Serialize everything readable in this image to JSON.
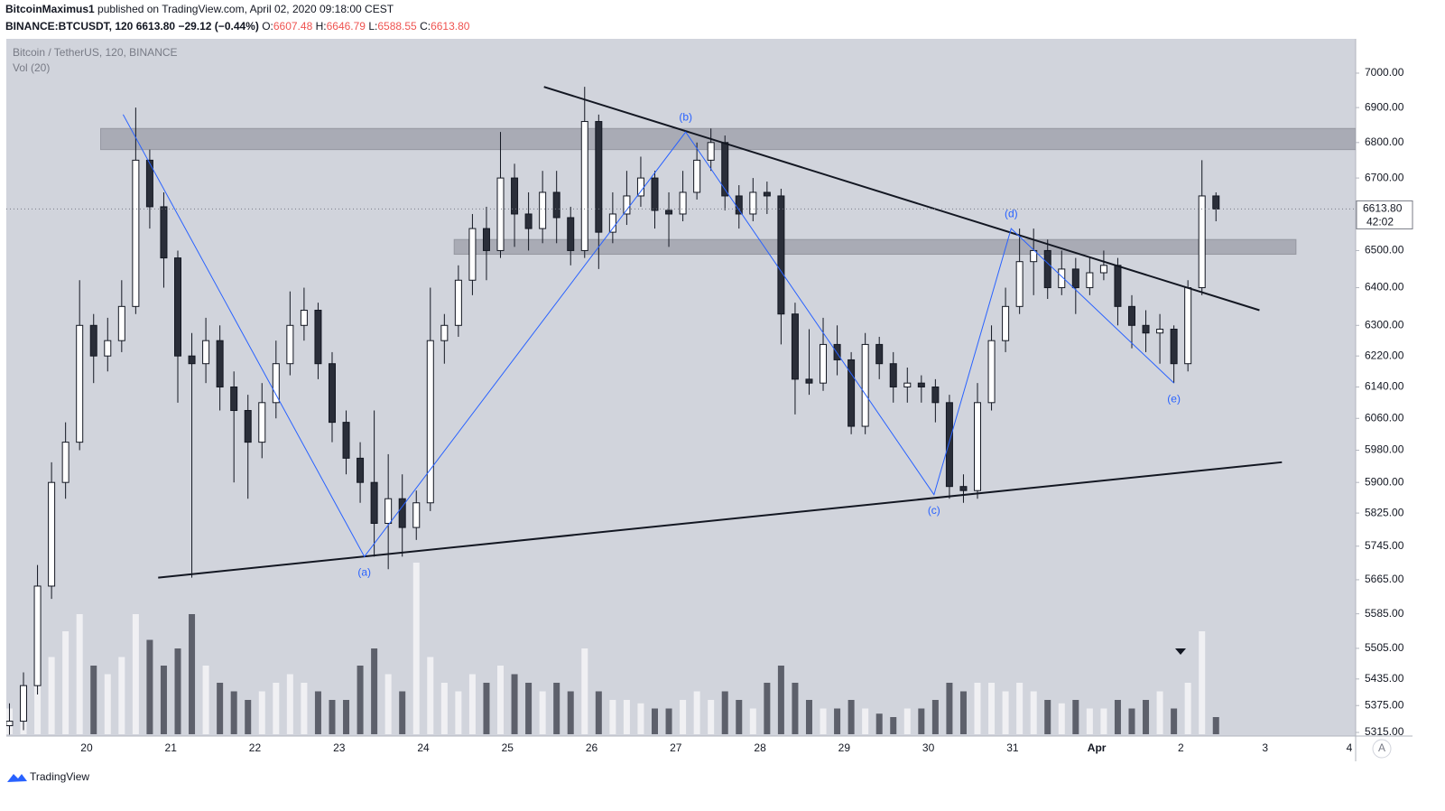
{
  "header": {
    "author": "BitcoinMaximus1",
    "published": "published on TradingView.com, April 02, 2020 09:18:00 CEST",
    "symbol": "BINANCE:BTCUSDT, 120",
    "price": "6613.80",
    "change": "−29.12 (−0.44%)",
    "ohlc": [
      {
        "key": "O:",
        "value": "6607.48"
      },
      {
        "key": "H:",
        "value": "6646.79"
      },
      {
        "key": "L:",
        "value": "6588.55"
      },
      {
        "key": "C:",
        "value": "6613.80"
      }
    ]
  },
  "footer": {
    "brand": "TradingView",
    "scale_button": "A"
  },
  "chart_data": {
    "type": "candlestick",
    "title": "Bitcoin / TetherUS, 120, BINANCE",
    "volume_label": "Vol (20)",
    "log_scale": true,
    "ylim": [
      5307,
      7101
    ],
    "yticks": [
      {
        "value": 7000,
        "label": "7000.00"
      },
      {
        "value": 6900,
        "label": "6900.00"
      },
      {
        "value": 6800,
        "label": "6800.00"
      },
      {
        "value": 6700,
        "label": "6700.00"
      },
      {
        "value": 6500,
        "label": "6500.00"
      },
      {
        "value": 6400,
        "label": "6400.00"
      },
      {
        "value": 6300,
        "label": "6300.00"
      },
      {
        "value": 6220,
        "label": "6220.00"
      },
      {
        "value": 6140,
        "label": "6140.00"
      },
      {
        "value": 6060,
        "label": "6060.00"
      },
      {
        "value": 5980,
        "label": "5980.00"
      },
      {
        "value": 5900,
        "label": "5900.00"
      },
      {
        "value": 5825,
        "label": "5825.00"
      },
      {
        "value": 5745,
        "label": "5745.00"
      },
      {
        "value": 5665,
        "label": "5665.00"
      },
      {
        "value": 5585,
        "label": "5585.00"
      },
      {
        "value": 5505,
        "label": "5505.00"
      },
      {
        "value": 5435,
        "label": "5435.00"
      },
      {
        "value": 5375,
        "label": "5375.00"
      },
      {
        "value": 5315,
        "label": "5315.00"
      }
    ],
    "categories": [
      null,
      null,
      null,
      null,
      null,
      null,
      "20",
      null,
      null,
      null,
      null,
      null,
      "21",
      null,
      null,
      null,
      null,
      null,
      "22",
      null,
      null,
      null,
      null,
      null,
      "23",
      null,
      null,
      null,
      null,
      null,
      "24",
      null,
      null,
      null,
      null,
      null,
      "25",
      null,
      null,
      null,
      null,
      null,
      "26",
      null,
      null,
      null,
      null,
      null,
      "27",
      null,
      null,
      null,
      null,
      null,
      "28",
      null,
      null,
      null,
      null,
      null,
      "29",
      null,
      null,
      null,
      null,
      null,
      "30",
      null,
      null,
      null,
      null,
      null,
      "31",
      null,
      null,
      null,
      null,
      null,
      "Apr",
      null,
      null,
      null,
      null,
      null,
      "2",
      null,
      null,
      null,
      null,
      null,
      "3",
      null,
      null,
      null,
      null,
      null,
      "4"
    ],
    "open": [
      5330,
      5340,
      5420,
      5650,
      5900,
      6000,
      6300,
      6220,
      6260,
      6350,
      6750,
      6620,
      6480,
      6220,
      6200,
      6260,
      6140,
      6080,
      6000,
      6100,
      6200,
      6300,
      6340,
      6200,
      6050,
      5960,
      5900,
      5800,
      5860,
      5790,
      5850,
      6260,
      6300,
      6420,
      6560,
      6500,
      6700,
      6600,
      6560,
      6660,
      6590,
      6500,
      6860,
      6550,
      6600,
      6650,
      6700,
      6610,
      6600,
      6660,
      6750,
      6800,
      6650,
      6600,
      6660,
      6650,
      6330,
      6160,
      6150,
      6250,
      6210,
      6040,
      6250,
      6200,
      6140,
      6150,
      6140,
      6100,
      5890,
      5880,
      6100,
      6260,
      6350,
      6470,
      6500,
      6400,
      6450,
      6400,
      6440,
      6460,
      6350,
      6300,
      6280,
      6290,
      6200,
      6400,
      6650,
      null,
      null,
      null,
      null,
      null,
      null,
      null,
      null,
      null,
      null
    ],
    "high": [
      5380,
      5450,
      5700,
      5950,
      6050,
      6420,
      6330,
      6320,
      6420,
      6900,
      6780,
      6660,
      6500,
      6280,
      6320,
      6300,
      6180,
      6120,
      6150,
      6260,
      6390,
      6400,
      6360,
      6230,
      6080,
      6000,
      6080,
      5970,
      5920,
      5880,
      6400,
      6330,
      6460,
      6600,
      6620,
      6830,
      6740,
      6660,
      6720,
      6720,
      6620,
      6960,
      6880,
      6660,
      6720,
      6760,
      6720,
      6660,
      6720,
      6800,
      6840,
      6820,
      6680,
      6700,
      6690,
      6670,
      6360,
      6290,
      6320,
      6300,
      6230,
      6280,
      6270,
      6230,
      6190,
      6170,
      6160,
      6120,
      5920,
      6150,
      6300,
      6400,
      6560,
      6560,
      6530,
      6500,
      6480,
      6480,
      6500,
      6480,
      6380,
      6340,
      6330,
      6300,
      6420,
      6750,
      6660,
      null,
      null,
      null,
      null,
      null,
      null,
      null,
      null,
      null,
      null
    ],
    "low": [
      5310,
      5320,
      5400,
      5620,
      5860,
      5980,
      6150,
      6180,
      6230,
      6330,
      6560,
      6400,
      6100,
      5670,
      6150,
      6080,
      5900,
      5860,
      5960,
      6060,
      6170,
      6260,
      6160,
      6000,
      5920,
      5850,
      5720,
      5690,
      5720,
      5760,
      5830,
      6200,
      6270,
      6380,
      6420,
      6480,
      6510,
      6500,
      6520,
      6520,
      6460,
      6480,
      6450,
      6520,
      6570,
      6620,
      6560,
      6510,
      6580,
      6640,
      6720,
      6610,
      6560,
      6580,
      6600,
      6250,
      6070,
      6120,
      6130,
      6170,
      6020,
      6020,
      6160,
      6100,
      6100,
      6100,
      6050,
      5860,
      5850,
      5860,
      6080,
      6230,
      6330,
      6380,
      6370,
      6380,
      6330,
      6380,
      6420,
      6300,
      6240,
      6230,
      6200,
      6150,
      6180,
      6380,
      6580,
      null,
      null,
      null,
      null,
      null,
      null,
      null,
      null,
      null,
      null
    ],
    "close": [
      5340,
      5420,
      5650,
      5900,
      6000,
      6300,
      6220,
      6260,
      6350,
      6750,
      6620,
      6480,
      6220,
      6200,
      6260,
      6140,
      6080,
      6000,
      6100,
      6200,
      6300,
      6340,
      6200,
      6050,
      5960,
      5900,
      5800,
      5860,
      5790,
      5850,
      6260,
      6300,
      6420,
      6560,
      6500,
      6700,
      6600,
      6560,
      6660,
      6590,
      6500,
      6860,
      6550,
      6600,
      6650,
      6700,
      6610,
      6600,
      6660,
      6750,
      6800,
      6650,
      6600,
      6660,
      6650,
      6330,
      6160,
      6150,
      6250,
      6210,
      6040,
      6250,
      6200,
      6140,
      6150,
      6140,
      6100,
      5890,
      5880,
      6100,
      6260,
      6350,
      6470,
      6500,
      6400,
      6450,
      6400,
      6440,
      6460,
      6350,
      6300,
      6280,
      6290,
      6200,
      6400,
      6650,
      6614,
      null,
      null,
      null,
      null,
      null,
      null,
      null,
      null,
      null,
      null
    ],
    "volume": [
      15,
      20,
      30,
      45,
      60,
      70,
      40,
      35,
      45,
      70,
      55,
      40,
      50,
      70,
      40,
      30,
      25,
      20,
      25,
      30,
      35,
      30,
      25,
      20,
      20,
      40,
      50,
      35,
      25,
      100,
      45,
      30,
      25,
      35,
      30,
      40,
      35,
      30,
      25,
      30,
      25,
      50,
      25,
      20,
      20,
      18,
      15,
      15,
      20,
      25,
      20,
      25,
      20,
      15,
      30,
      40,
      30,
      20,
      15,
      15,
      20,
      15,
      12,
      10,
      15,
      15,
      20,
      30,
      25,
      30,
      30,
      25,
      30,
      25,
      20,
      18,
      20,
      15,
      15,
      20,
      15,
      20,
      25,
      15,
      30,
      60,
      10,
      null,
      null,
      null,
      null,
      null,
      null,
      null,
      null,
      null,
      null
    ],
    "up_color": "#ffffff",
    "down_color": "#2a2e39",
    "up_volume_color": "#f0f0f3",
    "down_volume_color": "#5d606b",
    "last_price": {
      "value": 6613.8,
      "label": "6613.80"
    },
    "countdown": "42:02",
    "zones": [
      {
        "x": [
          6.5,
          96
        ],
        "y": [
          6840,
          6780
        ]
      },
      {
        "x": [
          31.7,
          91.7
        ],
        "y": [
          6530,
          6490
        ]
      }
    ],
    "trendlines": [
      {
        "x": [
          38.1,
          89.1
        ],
        "y": [
          6960,
          6340
        ]
      },
      {
        "x": [
          10.6,
          90.7
        ],
        "y": [
          5670,
          5950
        ]
      }
    ],
    "wave": {
      "x": [
        8.1,
        25.3,
        48.2,
        65.9,
        71.4,
        83.0
      ],
      "y": [
        6880,
        5720,
        6830,
        5870,
        6560,
        6150
      ],
      "labels": [
        null,
        "(a)",
        "(b)",
        "(c)",
        "(d)",
        "(e)"
      ],
      "color": "#2962ff"
    }
  }
}
